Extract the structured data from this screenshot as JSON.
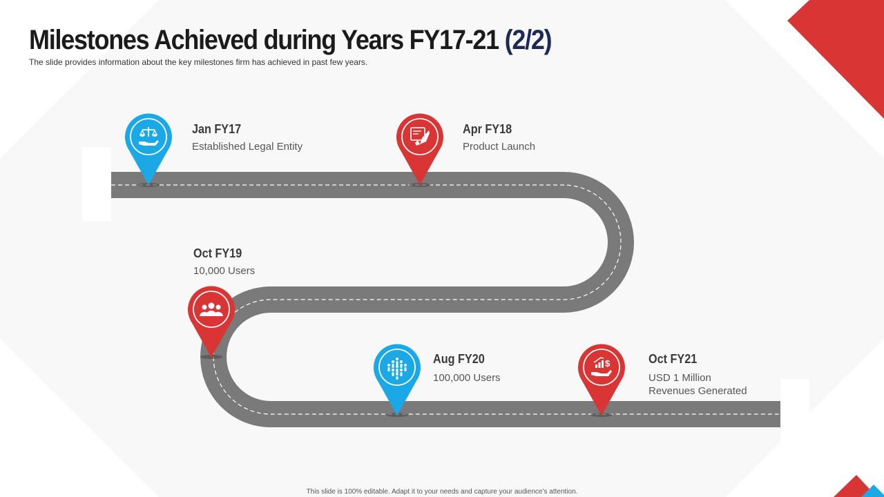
{
  "slide": {
    "title": "Milestones Achieved during Years FY17-21",
    "title_part": "(2/2)",
    "subtitle": "The slide provides information about the key milestones firm has achieved in past few years.",
    "footer": "This slide is 100% editable. Adapt it to your needs and capture your audience’s attention."
  },
  "colors": {
    "accent_red": "#d93535",
    "accent_blue": "#1aa9e6",
    "road": "#7a7a7a"
  },
  "milestones": [
    {
      "date": "Jan FY17",
      "desc": [
        "Established Legal Entity"
      ],
      "pin_color": "blue",
      "icon": "balance-scale-hand-icon"
    },
    {
      "date": "Apr FY18",
      "desc": [
        "Product Launch"
      ],
      "pin_color": "red",
      "icon": "rocket-launch-icon"
    },
    {
      "date": "Oct FY19",
      "desc": [
        "10,000 Users"
      ],
      "pin_color": "red",
      "icon": "users-group-icon"
    },
    {
      "date": "Aug FY20",
      "desc": [
        "100,000 Users"
      ],
      "pin_color": "blue",
      "icon": "crowd-icon"
    },
    {
      "date": "Oct FY21",
      "desc": [
        "USD 1 Million",
        "Revenues Generated"
      ],
      "pin_color": "red",
      "icon": "revenue-growth-hand-icon"
    }
  ]
}
